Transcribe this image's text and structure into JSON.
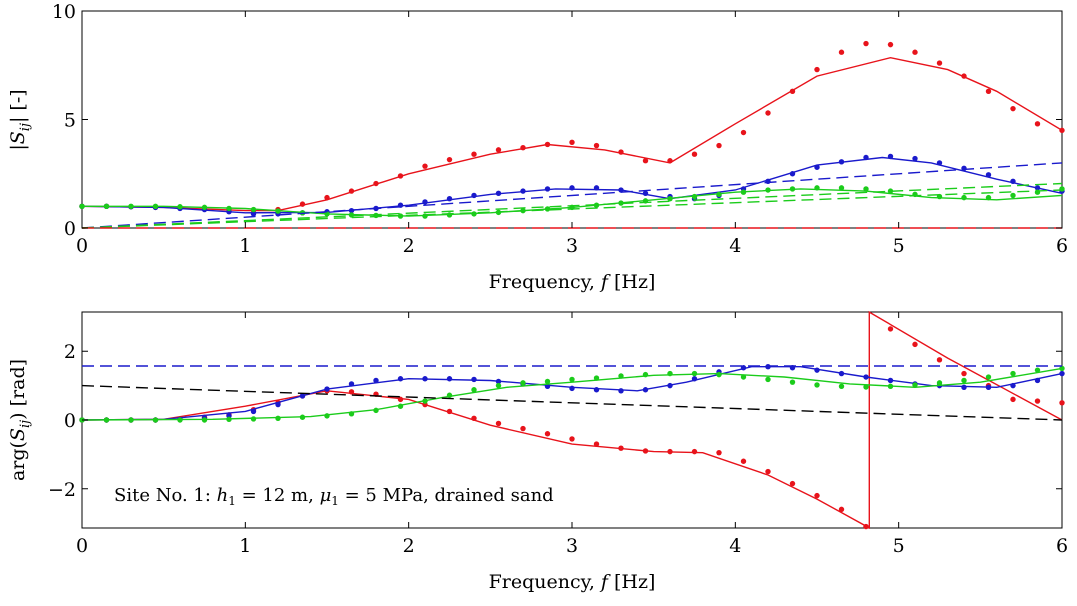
{
  "chart_data": [
    {
      "type": "line",
      "xlabel": "Frequency, f [Hz]",
      "ylabel": "|S_ij| [-]",
      "xlim": [
        0,
        6
      ],
      "ylim": [
        0,
        10
      ],
      "xticks": [
        0,
        1,
        2,
        3,
        4,
        5,
        6
      ],
      "yticks": [
        0,
        5,
        10
      ],
      "grid": false,
      "series": [
        {
          "style": "solid",
          "color": "#e8131b",
          "x": [
            0,
            0.5,
            1.0,
            1.2,
            1.5,
            2.0,
            2.5,
            2.85,
            3.2,
            3.6,
            4.0,
            4.5,
            4.95,
            5.3,
            5.6,
            6.0
          ],
          "y": [
            1.0,
            0.95,
            0.8,
            0.8,
            1.3,
            2.5,
            3.4,
            3.85,
            3.6,
            3.0,
            4.8,
            7.0,
            7.85,
            7.3,
            6.3,
            4.5
          ]
        },
        {
          "style": "markers",
          "color": "#e8131b",
          "x": [
            0,
            0.15,
            0.3,
            0.45,
            0.6,
            0.75,
            0.9,
            1.05,
            1.2,
            1.35,
            1.5,
            1.65,
            1.8,
            1.95,
            2.1,
            2.25,
            2.4,
            2.55,
            2.7,
            2.85,
            3.0,
            3.15,
            3.3,
            3.45,
            3.6,
            3.75,
            3.9,
            4.05,
            4.2,
            4.35,
            4.5,
            4.65,
            4.8,
            4.95,
            5.1,
            5.25,
            5.4,
            5.55,
            5.7,
            5.85,
            6.0
          ],
          "y": [
            1.0,
            1.0,
            0.98,
            0.95,
            0.92,
            0.88,
            0.85,
            0.8,
            0.85,
            1.1,
            1.4,
            1.7,
            2.05,
            2.4,
            2.85,
            3.15,
            3.4,
            3.6,
            3.7,
            3.85,
            3.95,
            3.8,
            3.5,
            3.1,
            3.1,
            3.4,
            3.8,
            4.4,
            5.3,
            6.3,
            7.3,
            8.1,
            8.5,
            8.45,
            8.1,
            7.6,
            7.0,
            6.3,
            5.5,
            4.8,
            4.5
          ]
        },
        {
          "style": "solid",
          "color": "#1a1acc",
          "x": [
            0,
            0.5,
            1.0,
            1.5,
            2.0,
            2.5,
            2.9,
            3.3,
            3.6,
            4.0,
            4.5,
            4.9,
            5.2,
            5.6,
            6.0
          ],
          "y": [
            1.0,
            0.95,
            0.7,
            0.72,
            1.05,
            1.55,
            1.8,
            1.75,
            1.35,
            1.75,
            2.9,
            3.25,
            3.0,
            2.25,
            1.6
          ]
        },
        {
          "style": "markers",
          "color": "#1a1acc",
          "x": [
            0,
            0.15,
            0.3,
            0.45,
            0.6,
            0.75,
            0.9,
            1.05,
            1.2,
            1.35,
            1.5,
            1.65,
            1.8,
            1.95,
            2.1,
            2.25,
            2.4,
            2.55,
            2.7,
            2.85,
            3.0,
            3.15,
            3.3,
            3.45,
            3.6,
            3.75,
            3.9,
            4.05,
            4.2,
            4.35,
            4.5,
            4.65,
            4.8,
            4.95,
            5.1,
            5.25,
            5.4,
            5.55,
            5.7,
            5.85,
            6.0
          ],
          "y": [
            1.0,
            1.0,
            0.98,
            0.95,
            0.9,
            0.85,
            0.75,
            0.65,
            0.65,
            0.7,
            0.75,
            0.8,
            0.9,
            1.05,
            1.2,
            1.35,
            1.5,
            1.6,
            1.7,
            1.8,
            1.85,
            1.85,
            1.75,
            1.6,
            1.45,
            1.35,
            1.5,
            1.8,
            2.15,
            2.5,
            2.8,
            3.05,
            3.25,
            3.3,
            3.2,
            3.0,
            2.75,
            2.45,
            2.15,
            1.85,
            1.7
          ]
        },
        {
          "style": "solid",
          "color": "#1bcc1b",
          "x": [
            0,
            0.5,
            1.0,
            1.5,
            2.0,
            2.5,
            3.0,
            3.5,
            4.0,
            4.4,
            4.8,
            5.2,
            5.6,
            6.0
          ],
          "y": [
            1.0,
            1.0,
            0.9,
            0.65,
            0.55,
            0.7,
            0.95,
            1.3,
            1.65,
            1.8,
            1.7,
            1.4,
            1.3,
            1.5
          ]
        },
        {
          "style": "markers",
          "color": "#1bcc1b",
          "x": [
            0,
            0.15,
            0.3,
            0.45,
            0.6,
            0.75,
            0.9,
            1.05,
            1.2,
            1.35,
            1.5,
            1.65,
            1.8,
            1.95,
            2.1,
            2.25,
            2.4,
            2.55,
            2.7,
            2.85,
            3.0,
            3.15,
            3.3,
            3.45,
            3.6,
            3.75,
            3.9,
            4.05,
            4.2,
            4.35,
            4.5,
            4.65,
            4.8,
            4.95,
            5.1,
            5.25,
            5.4,
            5.55,
            5.7,
            5.85,
            6.0
          ],
          "y": [
            1.0,
            1.0,
            1.0,
            1.0,
            0.98,
            0.95,
            0.9,
            0.85,
            0.78,
            0.7,
            0.65,
            0.6,
            0.58,
            0.55,
            0.55,
            0.6,
            0.65,
            0.72,
            0.8,
            0.88,
            0.95,
            1.05,
            1.15,
            1.25,
            1.35,
            1.45,
            1.55,
            1.65,
            1.75,
            1.8,
            1.85,
            1.85,
            1.8,
            1.7,
            1.55,
            1.45,
            1.4,
            1.4,
            1.5,
            1.65,
            1.8
          ]
        },
        {
          "style": "dashed",
          "color": "#1a1acc",
          "x": [
            0,
            6
          ],
          "y": [
            0.0,
            3.0
          ]
        },
        {
          "style": "dashed",
          "color": "#1bcc1b",
          "x": [
            0,
            6
          ],
          "y": [
            0.0,
            2.05
          ]
        },
        {
          "style": "dashed",
          "color": "#1bcc1b",
          "x": [
            0,
            6
          ],
          "y": [
            0.0,
            1.75
          ]
        },
        {
          "style": "dashed",
          "color": "#e8131b",
          "x": [
            0,
            6
          ],
          "y": [
            0.0,
            0.0
          ]
        }
      ]
    },
    {
      "type": "line",
      "xlabel": "Frequency, f [Hz]",
      "ylabel": "arg(S_ij) [rad]",
      "annotation": "Site No. 1: h_1 = 12 m, μ_1 = 5 MPa, drained sand",
      "xlim": [
        0,
        6
      ],
      "ylim": [
        -3.1416,
        3.1416
      ],
      "xticks": [
        0,
        1,
        2,
        3,
        4,
        5,
        6
      ],
      "yticks": [
        -2,
        0,
        2
      ],
      "grid": false,
      "series": [
        {
          "style": "solid",
          "color": "#e8131b",
          "x": [
            0,
            0.5,
            1.0,
            1.5,
            2.0,
            2.5,
            3.0,
            3.5,
            3.8,
            4.2,
            4.5,
            4.82,
            4.82,
            5.3,
            6.0
          ],
          "y": [
            0.0,
            0.02,
            0.4,
            0.85,
            0.6,
            -0.15,
            -0.7,
            -0.92,
            -0.95,
            -1.6,
            -2.3,
            -3.14,
            3.14,
            1.8,
            0.0
          ]
        },
        {
          "style": "markers",
          "color": "#e8131b",
          "x": [
            0,
            0.15,
            0.3,
            0.45,
            0.6,
            0.75,
            0.9,
            1.05,
            1.2,
            1.35,
            1.5,
            1.65,
            1.8,
            1.95,
            2.1,
            2.25,
            2.4,
            2.55,
            2.7,
            2.85,
            3.0,
            3.15,
            3.3,
            3.45,
            3.6,
            3.75,
            3.9,
            4.05,
            4.2,
            4.35,
            4.5,
            4.65,
            4.8,
            4.95,
            5.1,
            5.25,
            5.4,
            5.55,
            5.7,
            5.85,
            6.0
          ],
          "y": [
            0.0,
            0.0,
            0.0,
            0.0,
            0.02,
            0.08,
            0.15,
            0.3,
            0.5,
            0.7,
            0.85,
            0.82,
            0.75,
            0.6,
            0.45,
            0.25,
            0.05,
            -0.1,
            -0.25,
            -0.4,
            -0.55,
            -0.7,
            -0.82,
            -0.9,
            -0.92,
            -0.92,
            -0.95,
            -1.2,
            -1.5,
            -1.85,
            -2.2,
            -2.6,
            -3.1,
            2.65,
            2.2,
            1.75,
            1.35,
            1.0,
            0.6,
            0.55,
            0.5
          ]
        },
        {
          "style": "solid",
          "color": "#1a1acc",
          "x": [
            0,
            0.5,
            1.0,
            1.5,
            2.0,
            2.5,
            3.0,
            3.4,
            3.7,
            4.1,
            4.4,
            4.8,
            5.2,
            5.6,
            6.0
          ],
          "y": [
            0.0,
            0.02,
            0.25,
            0.9,
            1.2,
            1.15,
            0.95,
            0.85,
            1.1,
            1.55,
            1.55,
            1.25,
            1.0,
            0.95,
            1.35
          ]
        },
        {
          "style": "markers",
          "color": "#1a1acc",
          "x": [
            0,
            0.15,
            0.3,
            0.45,
            0.6,
            0.75,
            0.9,
            1.05,
            1.2,
            1.35,
            1.5,
            1.65,
            1.8,
            1.95,
            2.1,
            2.25,
            2.4,
            2.55,
            2.7,
            2.85,
            3.0,
            3.15,
            3.3,
            3.45,
            3.6,
            3.75,
            3.9,
            4.05,
            4.2,
            4.35,
            4.5,
            4.65,
            4.8,
            4.95,
            5.1,
            5.25,
            5.4,
            5.55,
            5.7,
            5.85,
            6.0
          ],
          "y": [
            0.0,
            0.0,
            0.0,
            0.0,
            0.02,
            0.05,
            0.12,
            0.25,
            0.45,
            0.7,
            0.9,
            1.05,
            1.15,
            1.2,
            1.2,
            1.2,
            1.18,
            1.12,
            1.05,
            0.98,
            0.92,
            0.88,
            0.85,
            0.88,
            1.0,
            1.2,
            1.4,
            1.52,
            1.55,
            1.52,
            1.45,
            1.35,
            1.25,
            1.15,
            1.05,
            1.0,
            0.95,
            0.95,
            1.0,
            1.15,
            1.35
          ]
        },
        {
          "style": "solid",
          "color": "#1bcc1b",
          "x": [
            0,
            0.8,
            1.4,
            1.8,
            2.2,
            2.6,
            3.0,
            3.5,
            3.9,
            4.3,
            4.7,
            5.1,
            5.5,
            6.0
          ],
          "y": [
            0.0,
            0.02,
            0.1,
            0.3,
            0.65,
            0.95,
            1.1,
            1.3,
            1.35,
            1.25,
            1.05,
            0.95,
            1.1,
            1.5
          ]
        },
        {
          "style": "markers",
          "color": "#1bcc1b",
          "x": [
            0,
            0.15,
            0.3,
            0.45,
            0.6,
            0.75,
            0.9,
            1.05,
            1.2,
            1.35,
            1.5,
            1.65,
            1.8,
            1.95,
            2.1,
            2.25,
            2.4,
            2.55,
            2.7,
            2.85,
            3.0,
            3.15,
            3.3,
            3.45,
            3.6,
            3.75,
            3.9,
            4.05,
            4.2,
            4.35,
            4.5,
            4.65,
            4.8,
            4.95,
            5.1,
            5.25,
            5.4,
            5.55,
            5.7,
            5.85,
            6.0
          ],
          "y": [
            0.0,
            0.0,
            0.0,
            0.0,
            0.0,
            0.0,
            0.02,
            0.03,
            0.05,
            0.08,
            0.12,
            0.18,
            0.28,
            0.4,
            0.55,
            0.72,
            0.88,
            1.0,
            1.08,
            1.12,
            1.18,
            1.22,
            1.28,
            1.32,
            1.35,
            1.35,
            1.32,
            1.25,
            1.18,
            1.1,
            1.02,
            0.98,
            0.96,
            0.98,
            1.02,
            1.08,
            1.15,
            1.25,
            1.35,
            1.45,
            1.5
          ]
        },
        {
          "style": "dashed",
          "color": "#1a1acc",
          "x": [
            0,
            6
          ],
          "y": [
            1.5708,
            1.5708
          ]
        },
        {
          "style": "dashed",
          "color": "#000000",
          "x": [
            0,
            6
          ],
          "y": [
            1.0,
            0.0
          ]
        }
      ]
    }
  ]
}
